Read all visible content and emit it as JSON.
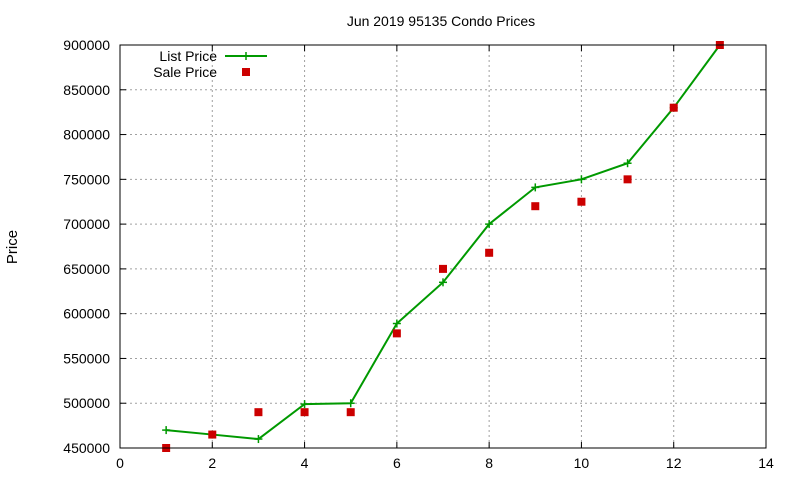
{
  "chart_data": {
    "type": "line",
    "title": "Jun 2019 95135 Condo Prices",
    "xlabel": "",
    "ylabel": "Price",
    "xlim": [
      0,
      14
    ],
    "ylim": [
      450000,
      900000
    ],
    "xticks": [
      0,
      2,
      4,
      6,
      8,
      10,
      12,
      14
    ],
    "yticks": [
      450000,
      500000,
      550000,
      600000,
      650000,
      700000,
      750000,
      800000,
      850000,
      900000
    ],
    "grid": true,
    "legend_position": "top-left",
    "series": [
      {
        "name": "List Price",
        "style": "line-with-plus-markers",
        "color": "#009900",
        "x": [
          1,
          2,
          3,
          4,
          5,
          6,
          7,
          8,
          9,
          10,
          11,
          12,
          13
        ],
        "y": [
          470000,
          465000,
          460000,
          499000,
          500000,
          589000,
          635000,
          700000,
          741000,
          750000,
          768000,
          830000,
          900000
        ]
      },
      {
        "name": "Sale Price",
        "style": "square-markers",
        "color": "#cc0000",
        "x": [
          1,
          2,
          3,
          4,
          5,
          6,
          7,
          8,
          9,
          10,
          11,
          12,
          13
        ],
        "y": [
          450000,
          465000,
          490000,
          490000,
          490000,
          578000,
          650000,
          668000,
          720000,
          725000,
          750000,
          830000,
          900000
        ]
      }
    ]
  }
}
